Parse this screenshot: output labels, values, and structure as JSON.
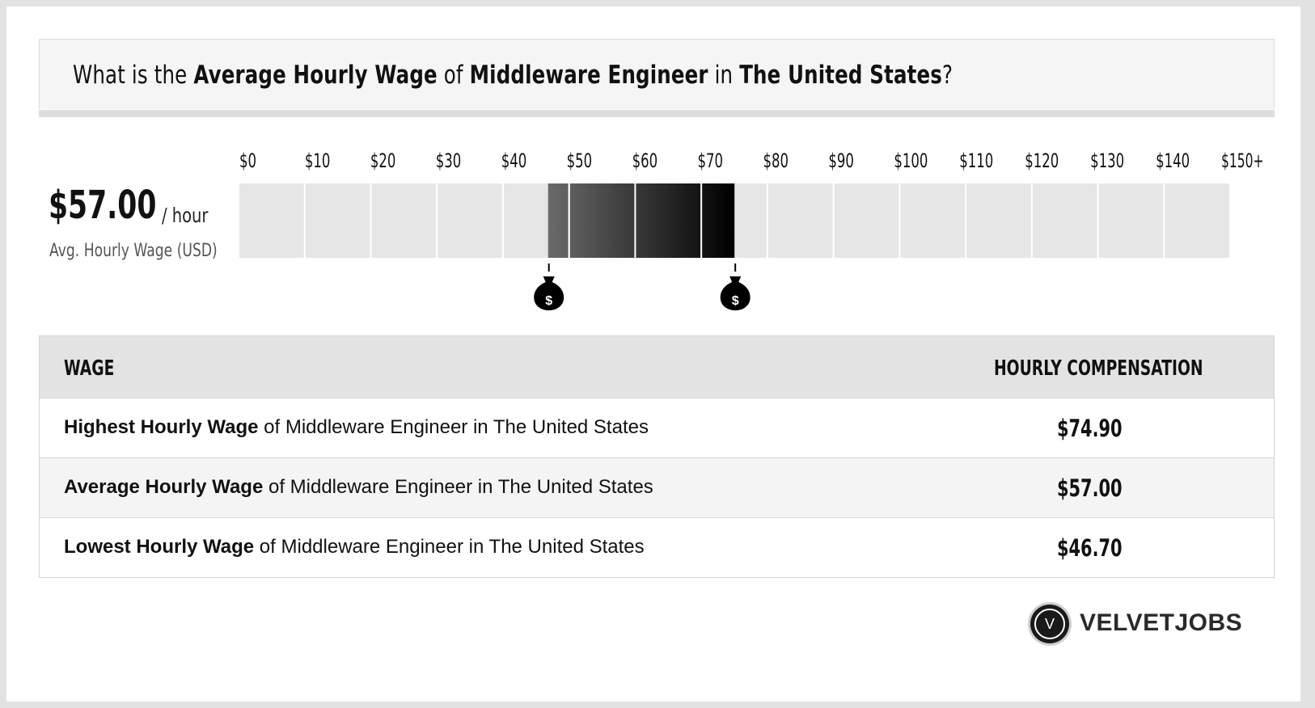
{
  "header": {
    "prefix": "What is the ",
    "metric": "Average Hourly Wage",
    "of": " of ",
    "job": "Middleware Engineer",
    "in": " in ",
    "location": "The United States",
    "suffix": "?"
  },
  "average": {
    "value": "$57.00",
    "unit": "/ hour",
    "label": "Avg. Hourly Wage (USD)"
  },
  "chart_data": {
    "type": "bar",
    "tick_labels": [
      "$0",
      "$10",
      "$20",
      "$30",
      "$40",
      "$50",
      "$60",
      "$70",
      "$80",
      "$90",
      "$100",
      "$110",
      "$120",
      "$130",
      "$140",
      "$150+"
    ],
    "xlim": [
      0,
      150
    ],
    "range": {
      "low": 46.7,
      "average": 57.0,
      "high": 74.9
    },
    "low_marker_icon": "money-bag-icon",
    "high_marker_icon": "money-bag-icon"
  },
  "table": {
    "headers": {
      "wage": "WAGE",
      "compensation": "HOURLY COMPENSATION"
    },
    "rows": [
      {
        "bold": "Highest Hourly Wage",
        "rest": " of Middleware Engineer in The United States",
        "value": "$74.90"
      },
      {
        "bold": "Average Hourly Wage",
        "rest": " of Middleware Engineer in The United States",
        "value": "$57.00"
      },
      {
        "bold": "Lowest Hourly Wage",
        "rest": " of Middleware Engineer in The United States",
        "value": "$46.70"
      }
    ]
  },
  "brand": {
    "logo_letter": "V",
    "name": "VELVETJOBS"
  }
}
